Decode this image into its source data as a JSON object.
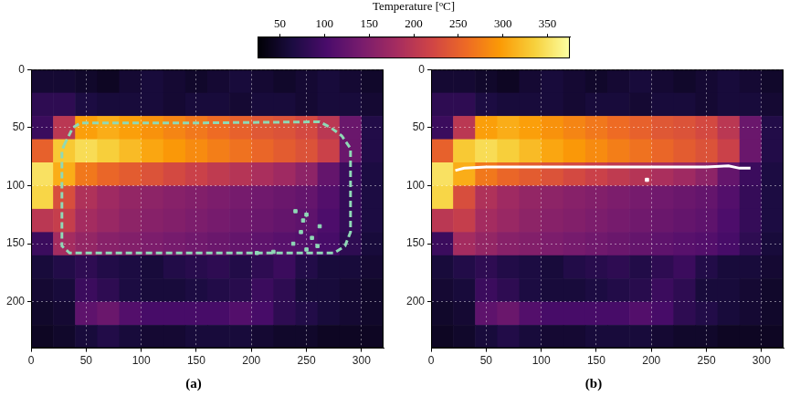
{
  "colorbar": {
    "title": "Temperature [ºC]",
    "range": [
      25,
      375
    ],
    "ticks": [
      50,
      100,
      150,
      200,
      250,
      300,
      350
    ]
  },
  "chart_data": [
    {
      "type": "heatmap",
      "label": "(a)",
      "xlim": [
        0,
        320
      ],
      "ylim": [
        240,
        0
      ],
      "xticks": [
        0,
        50,
        100,
        150,
        200,
        250,
        300
      ],
      "yticks": [
        0,
        50,
        100,
        150,
        200
      ],
      "grid": true,
      "cells": {
        "x_edges": [
          0,
          20,
          40,
          60,
          80,
          100,
          120,
          140,
          160,
          180,
          200,
          220,
          240,
          260,
          280,
          300,
          320
        ],
        "y_edges": [
          0,
          20,
          40,
          60,
          80,
          100,
          120,
          140,
          160,
          180,
          200,
          220,
          240
        ],
        "values": [
          [
            55,
            55,
            50,
            45,
            55,
            60,
            55,
            50,
            55,
            60,
            55,
            50,
            55,
            60,
            55,
            50
          ],
          [
            80,
            80,
            65,
            60,
            60,
            60,
            55,
            60,
            60,
            55,
            60,
            60,
            55,
            60,
            60,
            55
          ],
          [
            90,
            200,
            300,
            310,
            300,
            290,
            280,
            270,
            260,
            250,
            240,
            235,
            225,
            200,
            130,
            70
          ],
          [
            250,
            330,
            345,
            335,
            320,
            305,
            295,
            285,
            275,
            265,
            255,
            245,
            235,
            215,
            130,
            70
          ],
          [
            350,
            310,
            270,
            255,
            245,
            235,
            225,
            215,
            205,
            195,
            185,
            175,
            160,
            125,
            90,
            65
          ],
          [
            340,
            230,
            190,
            175,
            165,
            160,
            155,
            150,
            145,
            140,
            135,
            130,
            125,
            110,
            85,
            65
          ],
          [
            200,
            210,
            180,
            170,
            160,
            155,
            150,
            145,
            140,
            135,
            130,
            125,
            120,
            105,
            85,
            65
          ],
          [
            90,
            180,
            165,
            155,
            150,
            145,
            140,
            135,
            130,
            125,
            120,
            115,
            110,
            100,
            80,
            60
          ],
          [
            60,
            70,
            80,
            70,
            65,
            60,
            70,
            75,
            80,
            70,
            80,
            90,
            70,
            60,
            60,
            55
          ],
          [
            55,
            60,
            90,
            80,
            65,
            60,
            60,
            65,
            70,
            75,
            90,
            80,
            60,
            60,
            55,
            50
          ],
          [
            50,
            55,
            120,
            130,
            110,
            100,
            100,
            100,
            100,
            110,
            100,
            80,
            70,
            60,
            55,
            50
          ],
          [
            45,
            50,
            60,
            70,
            60,
            55,
            55,
            60,
            60,
            60,
            55,
            50,
            50,
            45,
            45,
            45
          ]
        ]
      },
      "series": [
        {
          "type": "line",
          "color": "#8fd9b6",
          "line_style": "dashed",
          "marker": "none",
          "x": [
            30,
            38,
            45,
            150,
            262,
            272,
            282,
            290,
            290,
            285,
            275,
            150,
            35,
            28,
            28,
            30
          ],
          "y": [
            65,
            50,
            46,
            46,
            45,
            50,
            57,
            68,
            140,
            152,
            158,
            158,
            158,
            152,
            70,
            65
          ]
        },
        {
          "type": "scatter",
          "color": "#8fd9b6",
          "line_style": "none",
          "marker": "square",
          "x": [
            240,
            250,
            247,
            245,
            255,
            262,
            238,
            250,
            260,
            205,
            220
          ],
          "y": [
            122,
            125,
            130,
            140,
            145,
            135,
            150,
            155,
            152,
            158,
            157
          ]
        }
      ]
    },
    {
      "type": "heatmap",
      "label": "(b)",
      "xlim": [
        0,
        320
      ],
      "ylim": [
        240,
        0
      ],
      "xticks": [
        0,
        50,
        100,
        150,
        200,
        250,
        300
      ],
      "yticks": [
        0,
        50,
        100,
        150,
        200
      ],
      "grid": true,
      "cells": {
        "x_edges": [
          0,
          20,
          40,
          60,
          80,
          100,
          120,
          140,
          160,
          180,
          200,
          220,
          240,
          260,
          280,
          300,
          320
        ],
        "y_edges": [
          0,
          20,
          40,
          60,
          80,
          100,
          120,
          140,
          160,
          180,
          200,
          220,
          240
        ],
        "values": [
          [
            55,
            55,
            50,
            45,
            55,
            60,
            55,
            50,
            55,
            60,
            55,
            50,
            55,
            60,
            55,
            50
          ],
          [
            80,
            80,
            65,
            60,
            60,
            60,
            55,
            60,
            60,
            55,
            60,
            60,
            55,
            60,
            60,
            55
          ],
          [
            90,
            200,
            300,
            310,
            300,
            290,
            280,
            270,
            260,
            250,
            240,
            235,
            225,
            200,
            130,
            70
          ],
          [
            250,
            330,
            345,
            335,
            320,
            305,
            295,
            285,
            275,
            265,
            255,
            245,
            235,
            215,
            130,
            70
          ],
          [
            350,
            310,
            270,
            255,
            245,
            235,
            225,
            215,
            205,
            195,
            185,
            175,
            160,
            125,
            90,
            65
          ],
          [
            340,
            230,
            190,
            175,
            165,
            160,
            155,
            150,
            145,
            140,
            135,
            130,
            125,
            110,
            85,
            65
          ],
          [
            200,
            210,
            180,
            170,
            160,
            155,
            150,
            145,
            140,
            135,
            130,
            125,
            120,
            105,
            85,
            65
          ],
          [
            90,
            180,
            165,
            155,
            150,
            145,
            140,
            135,
            130,
            125,
            120,
            115,
            110,
            100,
            80,
            60
          ],
          [
            60,
            70,
            80,
            70,
            65,
            60,
            70,
            75,
            80,
            70,
            80,
            90,
            70,
            60,
            60,
            55
          ],
          [
            55,
            60,
            90,
            80,
            65,
            60,
            60,
            65,
            70,
            75,
            90,
            80,
            60,
            60,
            55,
            50
          ],
          [
            50,
            55,
            120,
            130,
            110,
            100,
            100,
            100,
            100,
            110,
            100,
            80,
            70,
            60,
            55,
            50
          ],
          [
            45,
            50,
            60,
            70,
            60,
            55,
            55,
            60,
            60,
            60,
            55,
            50,
            50,
            45,
            45,
            45
          ]
        ]
      },
      "series": [
        {
          "type": "line",
          "color": "#ffffff",
          "line_style": "solid",
          "marker": "none",
          "x": [
            22,
            30,
            50,
            100,
            150,
            200,
            250,
            270,
            280,
            290
          ],
          "y": [
            87,
            85,
            84,
            84,
            84,
            84,
            84,
            83,
            85,
            85
          ]
        },
        {
          "type": "scatter",
          "color": "#ffffff",
          "line_style": "none",
          "marker": "square",
          "x": [
            196
          ],
          "y": [
            95
          ]
        }
      ]
    }
  ]
}
